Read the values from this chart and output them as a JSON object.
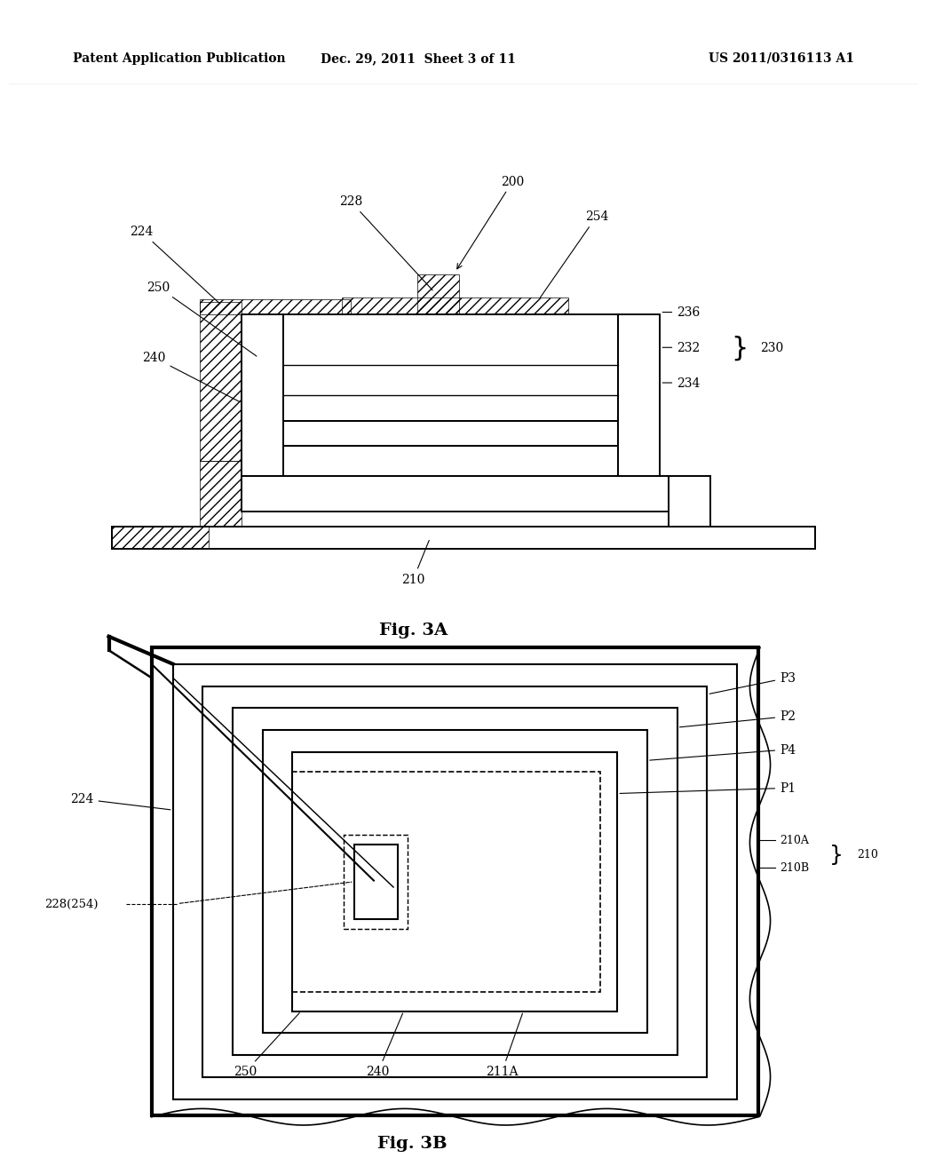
{
  "bg_color": "#ffffff",
  "line_color": "#000000",
  "header": {
    "left": "Patent Application Publication",
    "center": "Dec. 29, 2011  Sheet 3 of 11",
    "right": "US 2011/0316113 A1"
  },
  "fig3a_label": "Fig. 3A",
  "fig3b_label": "Fig. 3B"
}
